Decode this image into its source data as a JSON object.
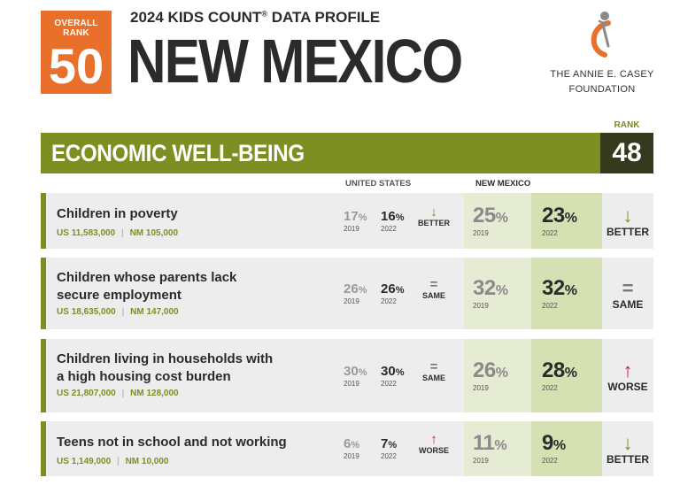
{
  "header": {
    "overall_rank_label": "OVERALL RANK",
    "overall_rank": "50",
    "profile_title": "2024 KIDS COUNT",
    "profile_title_mark": "®",
    "profile_title_rest": " DATA PROFILE",
    "state": "NEW MEXICO"
  },
  "logo": {
    "line1": "THE ANNIE E. CASEY",
    "line2": "FOUNDATION"
  },
  "section": {
    "rank_label": "RANK",
    "title": "ECONOMIC WELL-BEING",
    "rank": "48"
  },
  "columns": {
    "us": "UNITED STATES",
    "nm": "NEW MEXICO"
  },
  "indicators": [
    {
      "title": [
        "Children in poverty"
      ],
      "us_count_label": "US",
      "us_count": "11,583,000",
      "nm_count_label": "NM",
      "nm_count": "105,000",
      "us_2019": "17",
      "us_2022": "16",
      "us_trend": "BETTER",
      "nm_2019": "25",
      "nm_2022": "23",
      "nm_trend": "BETTER",
      "pct": "%",
      "y1": "2019",
      "y2": "2022"
    },
    {
      "title": [
        "Children whose parents lack",
        "secure employment"
      ],
      "us_count_label": "US",
      "us_count": "18,635,000",
      "nm_count_label": "NM",
      "nm_count": "147,000",
      "us_2019": "26",
      "us_2022": "26",
      "us_trend": "SAME",
      "nm_2019": "32",
      "nm_2022": "32",
      "nm_trend": "SAME",
      "pct": "%",
      "y1": "2019",
      "y2": "2022"
    },
    {
      "title": [
        "Children living in households with",
        "a high housing cost burden"
      ],
      "us_count_label": "US",
      "us_count": "21,807,000",
      "nm_count_label": "NM",
      "nm_count": "128,000",
      "us_2019": "30",
      "us_2022": "30",
      "us_trend": "SAME",
      "nm_2019": "26",
      "nm_2022": "28",
      "nm_trend": "WORSE",
      "pct": "%",
      "y1": "2019",
      "y2": "2022"
    },
    {
      "title": [
        "Teens not in school and not working"
      ],
      "us_count_label": "US",
      "us_count": "1,149,000",
      "nm_count_label": "NM",
      "nm_count": "10,000",
      "us_2019": "6",
      "us_2022": "7",
      "us_trend": "WORSE",
      "nm_2019": "11",
      "nm_2022": "9",
      "nm_trend": "BETTER",
      "pct": "%",
      "y1": "2019",
      "y2": "2022"
    }
  ],
  "icons": {
    "down": "down-arrow-icon",
    "up": "up-arrow-icon",
    "same": "equals-icon"
  },
  "colors": {
    "orange": "#e8702a",
    "olive": "#7d8f22",
    "dark": "#353a1f",
    "worse": "#c0223b"
  }
}
